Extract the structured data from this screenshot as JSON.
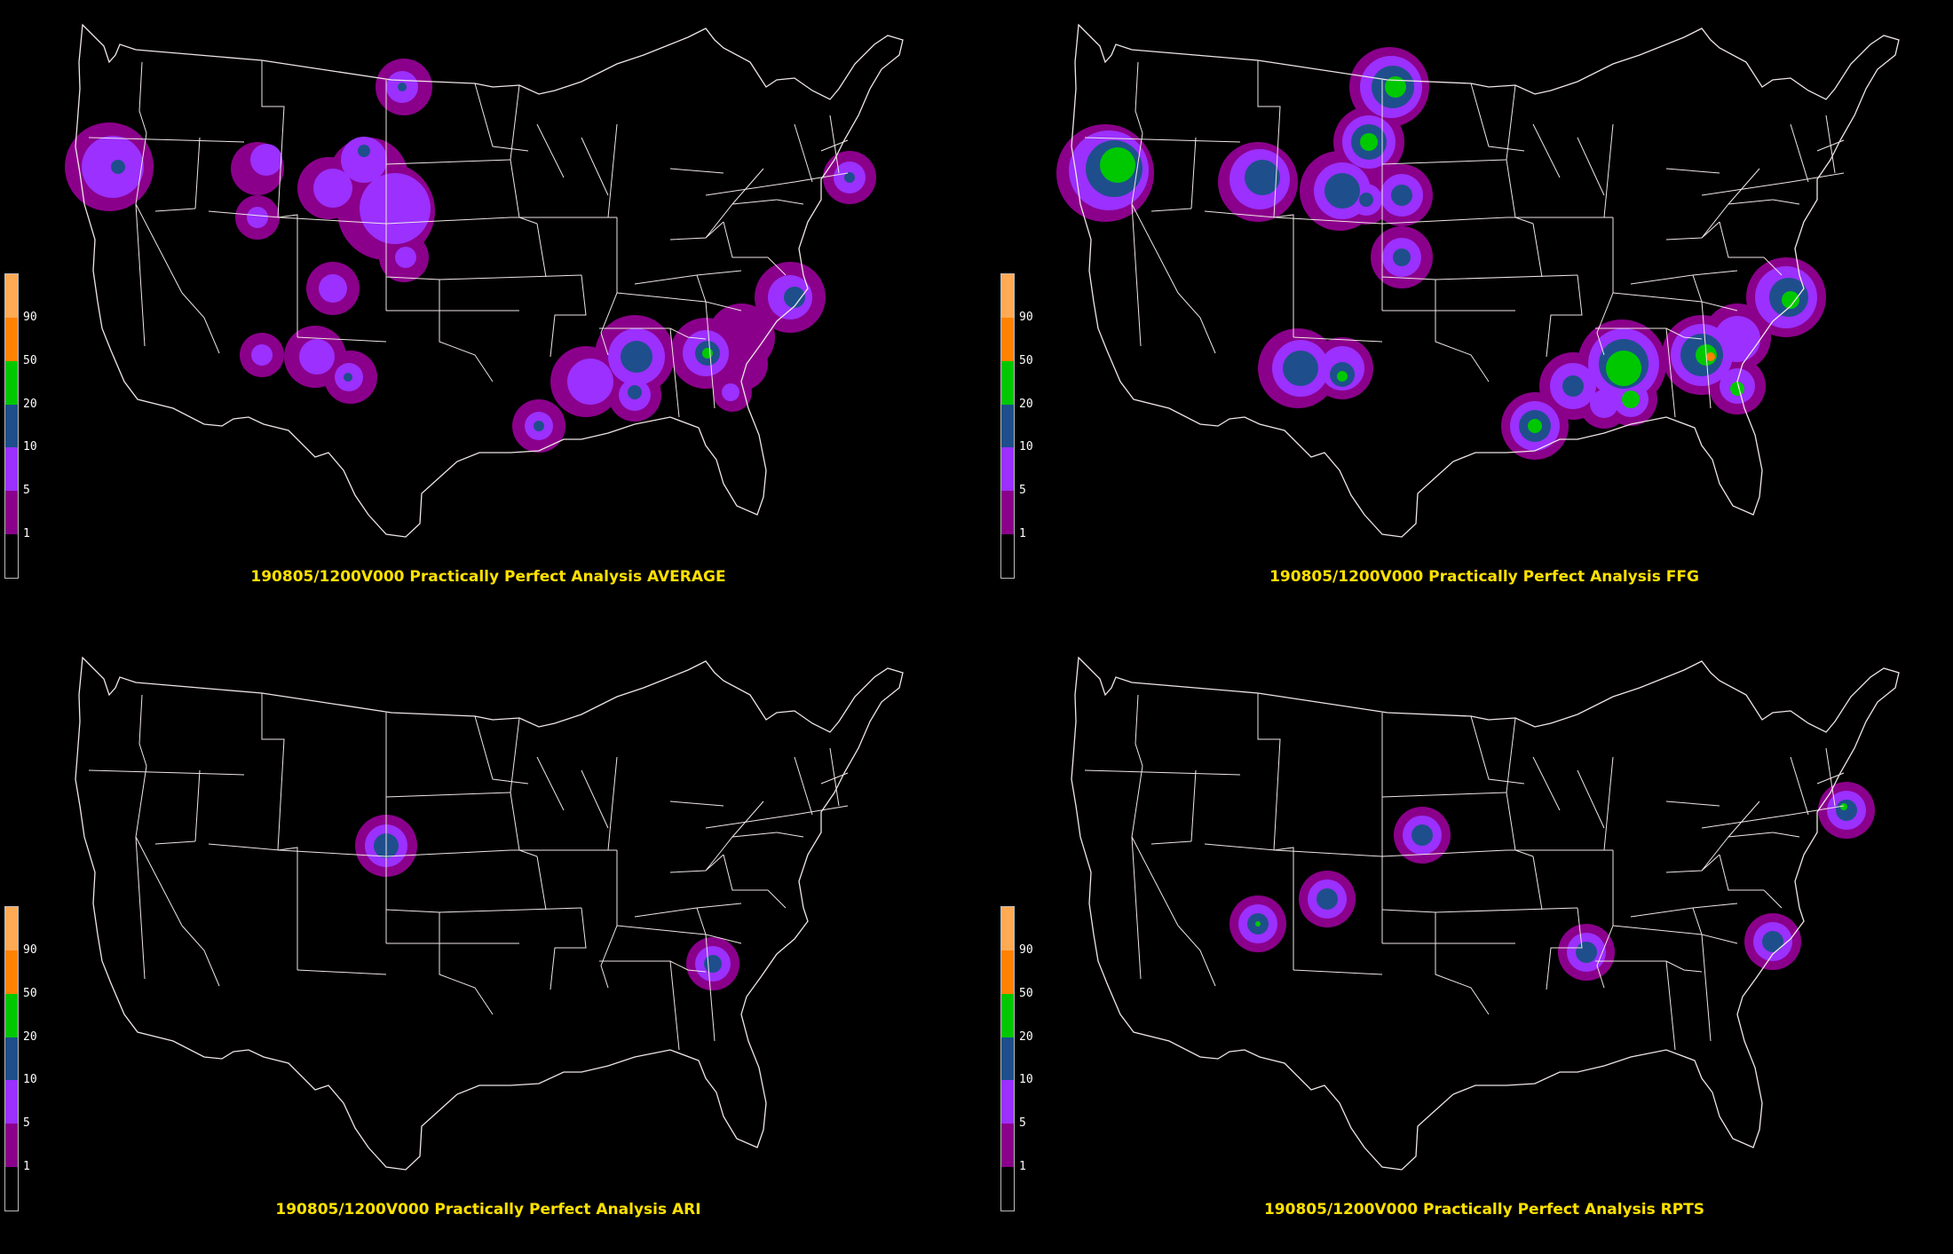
{
  "legend": {
    "levels": [
      {
        "label": "",
        "color": "#000000"
      },
      {
        "label": "1",
        "color": "#8b008b"
      },
      {
        "label": "5",
        "color": "#9b30ff"
      },
      {
        "label": "10",
        "color": "#1e4f8c"
      },
      {
        "label": "20",
        "color": "#00c800"
      },
      {
        "label": "50",
        "color": "#ff8200"
      },
      {
        "label": "90",
        "color": "#ffaa55"
      }
    ]
  },
  "panels": [
    {
      "title": "190805/1200V000 Practically Perfect Analysis AVERAGE"
    },
    {
      "title": "190805/1200V000 Practically Perfect Analysis FFG"
    },
    {
      "title": "190805/1200V000 Practically Perfect Analysis ARI"
    },
    {
      "title": "190805/1200V000 Practically Perfect Analysis RPTS"
    }
  ]
}
